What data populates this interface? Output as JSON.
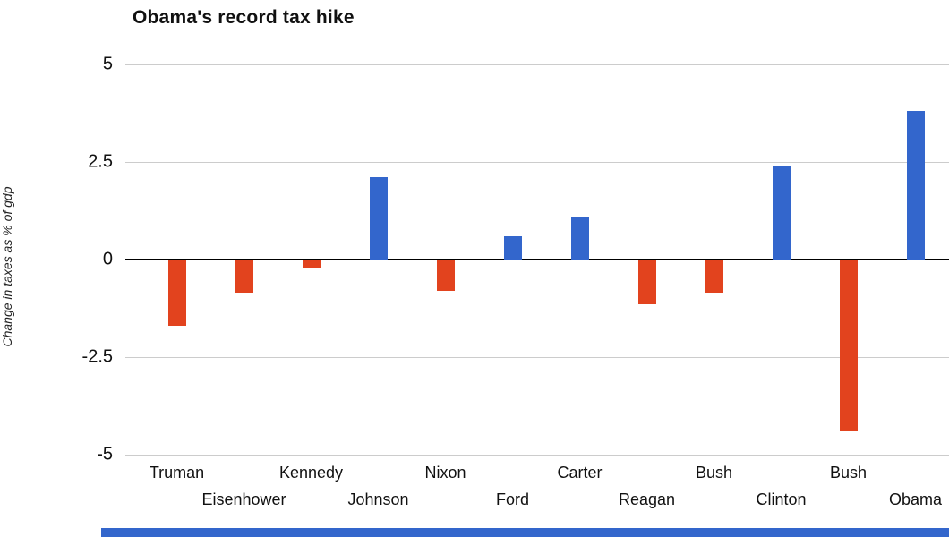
{
  "colors": {
    "positive_bar": "#3366cc",
    "negative_bar": "#e2431e",
    "gridline": "#cccccc",
    "zero_line": "#000000",
    "text": "#111111",
    "bottom_strip": "#3366cc"
  },
  "chart_data": {
    "type": "bar",
    "title": "Obama's record tax hike",
    "ylabel": "Change in taxes as % of gdp",
    "categories": [
      "Truman",
      "Eisenhower",
      "Kennedy",
      "Johnson",
      "Nixon",
      "Ford",
      "Carter",
      "Reagan",
      "Bush",
      "Clinton",
      "Bush",
      "Obama"
    ],
    "values": [
      -1.7,
      -0.85,
      -0.2,
      2.1,
      -0.8,
      0.6,
      1.1,
      -1.15,
      -0.85,
      2.4,
      -4.4,
      3.8
    ],
    "ylim": [
      -5,
      5
    ],
    "yticks": [
      5,
      2.5,
      0,
      -2.5,
      -5
    ],
    "grid": true,
    "legend": "none",
    "x_label_layout": "staggered-two-rows"
  }
}
